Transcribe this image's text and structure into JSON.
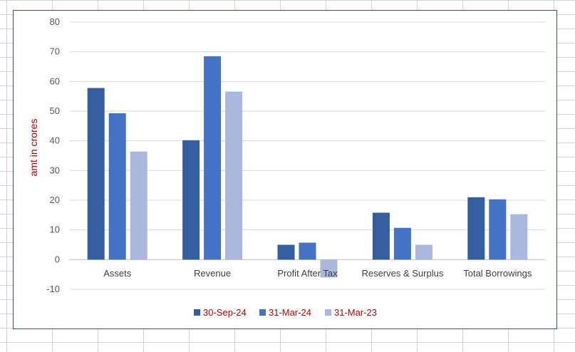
{
  "chart_data": {
    "type": "bar",
    "title": "",
    "xlabel": "",
    "ylabel": "amt in crores",
    "ylabel_color": "#c00000",
    "ylim": [
      -10,
      80
    ],
    "yticks": [
      80,
      70,
      60,
      50,
      40,
      30,
      20,
      10,
      0,
      -10
    ],
    "grid": true,
    "legend_position": "bottom",
    "categories": [
      "Assets",
      "Revenue",
      "Profit After Tax",
      "Reserves & Surplus",
      "Total Borrowings"
    ],
    "series": [
      {
        "name": "30-Sep-24",
        "color": "#355ea0",
        "values": [
          57.8,
          40.2,
          5.0,
          15.8,
          21.0
        ]
      },
      {
        "name": "31-Mar-24",
        "color": "#4472c4",
        "values": [
          49.3,
          68.5,
          5.7,
          10.7,
          20.3
        ]
      },
      {
        "name": "31-Mar-23",
        "color": "#a9b8dc",
        "values": [
          36.4,
          56.6,
          -6.0,
          5.0,
          15.3
        ]
      }
    ],
    "legend_text_color": "#c00000"
  }
}
